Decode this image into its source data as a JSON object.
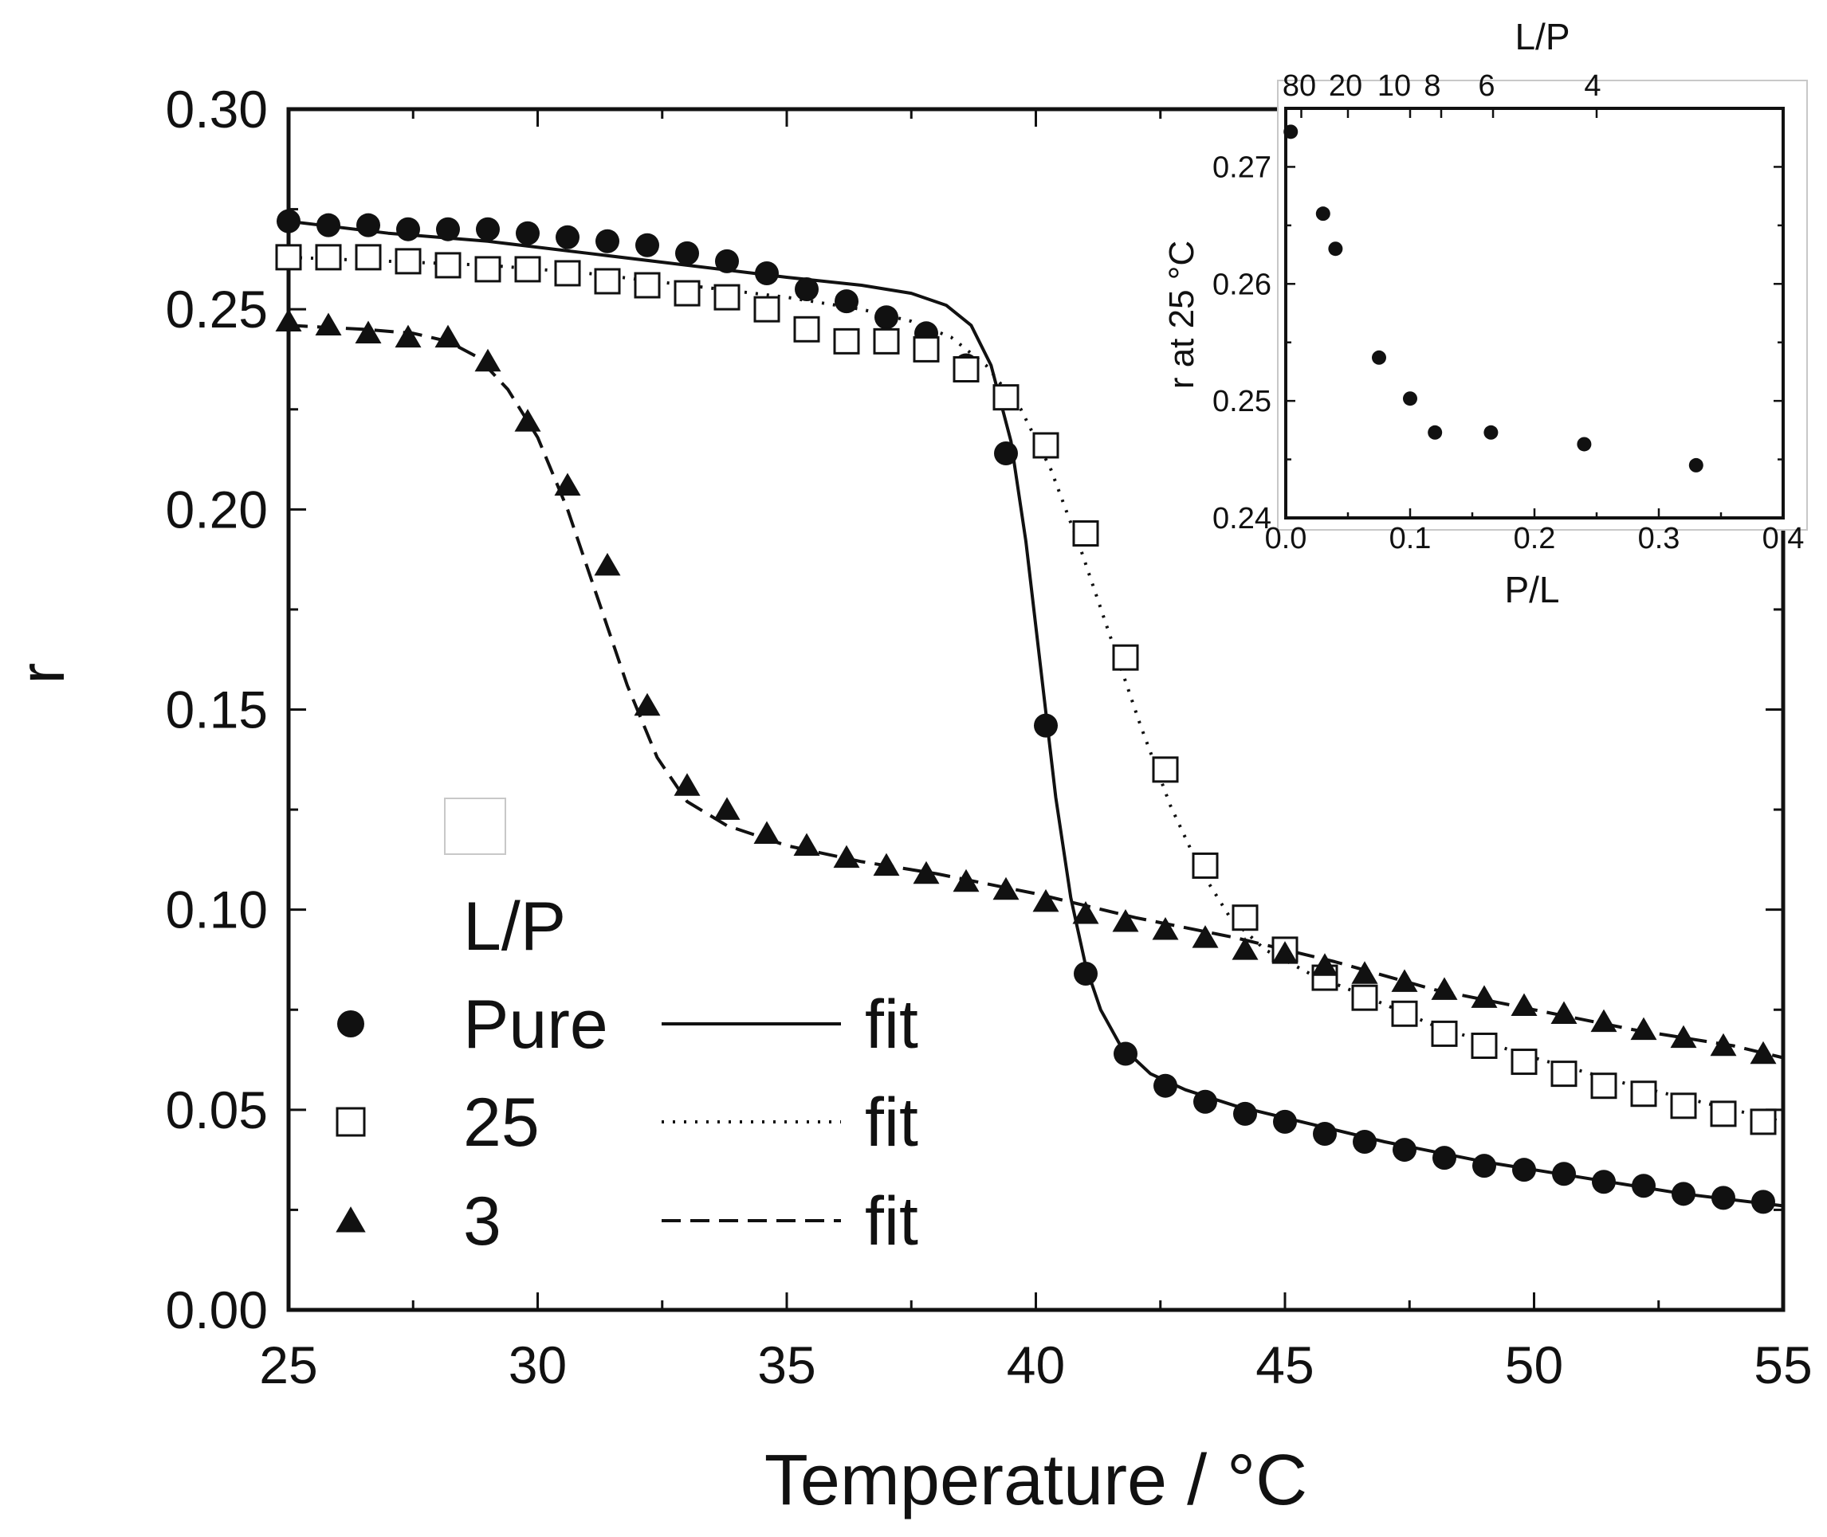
{
  "colors": {
    "ink": "#111111",
    "frame": "#000000",
    "background": "#ffffff",
    "faint": "#c8c8c8"
  },
  "chart_data": [
    {
      "type": "scatter",
      "id": "main",
      "title": "",
      "xlabel": "Temperature / °C",
      "ylabel": "r",
      "xlim": [
        25,
        55
      ],
      "ylim": [
        0.0,
        0.3
      ],
      "x_ticks": [
        25,
        30,
        35,
        40,
        45,
        50,
        55
      ],
      "x_tick_labels": [
        "25",
        "30",
        "35",
        "40",
        "45",
        "50",
        "55"
      ],
      "y_ticks": [
        0.0,
        0.05,
        0.1,
        0.15,
        0.2,
        0.25,
        0.3
      ],
      "y_tick_labels": [
        "0.00",
        "0.05",
        "0.10",
        "0.15",
        "0.20",
        "0.25",
        "0.30"
      ],
      "legend": {
        "title": "L/P",
        "position": "bottom-left",
        "entries": [
          {
            "marker": "filled-circle",
            "label": "Pure",
            "line": "solid",
            "line_label": "fit"
          },
          {
            "marker": "open-square",
            "label": "25",
            "line": "dotted",
            "line_label": "fit"
          },
          {
            "marker": "filled-triangle",
            "label": "3",
            "line": "dashed",
            "line_label": "fit"
          }
        ]
      },
      "series": [
        {
          "name": "Pure",
          "marker": "filled-circle",
          "x": [
            25.0,
            25.8,
            26.6,
            27.4,
            28.2,
            29.0,
            29.8,
            30.6,
            31.4,
            32.2,
            33.0,
            33.8,
            34.6,
            35.4,
            36.2,
            37.0,
            37.8,
            38.6,
            39.4,
            40.2,
            41.0,
            41.8,
            42.6,
            43.4,
            44.2,
            45.0,
            45.8,
            46.6,
            47.4,
            48.2,
            49.0,
            49.8,
            50.6,
            51.4,
            52.2,
            53.0,
            53.8,
            54.6
          ],
          "y": [
            0.272,
            0.271,
            0.271,
            0.27,
            0.27,
            0.27,
            0.269,
            0.268,
            0.267,
            0.266,
            0.264,
            0.262,
            0.259,
            0.255,
            0.252,
            0.248,
            0.244,
            0.236,
            0.214,
            0.146,
            0.084,
            0.064,
            0.056,
            0.052,
            0.049,
            0.047,
            0.044,
            0.042,
            0.04,
            0.038,
            0.036,
            0.035,
            0.034,
            0.032,
            0.031,
            0.029,
            0.028,
            0.027
          ]
        },
        {
          "name": "25",
          "marker": "open-square",
          "x": [
            25.0,
            25.8,
            26.6,
            27.4,
            28.2,
            29.0,
            29.8,
            30.6,
            31.4,
            32.2,
            33.0,
            33.8,
            34.6,
            35.4,
            36.2,
            37.0,
            37.8,
            38.6,
            39.4,
            40.2,
            41.0,
            41.8,
            42.6,
            43.4,
            44.2,
            45.0,
            45.8,
            46.6,
            47.4,
            48.2,
            49.0,
            49.8,
            50.6,
            51.4,
            52.2,
            53.0,
            53.8,
            54.6
          ],
          "y": [
            0.263,
            0.263,
            0.263,
            0.262,
            0.261,
            0.26,
            0.26,
            0.259,
            0.257,
            0.256,
            0.254,
            0.253,
            0.25,
            0.245,
            0.242,
            0.242,
            0.24,
            0.235,
            0.228,
            0.216,
            0.194,
            0.163,
            0.135,
            0.111,
            0.098,
            0.09,
            0.083,
            0.078,
            0.074,
            0.069,
            0.066,
            0.062,
            0.059,
            0.056,
            0.054,
            0.051,
            0.049,
            0.047
          ]
        },
        {
          "name": "3",
          "marker": "filled-triangle",
          "x": [
            25.0,
            25.8,
            26.6,
            27.4,
            28.2,
            29.0,
            29.8,
            30.6,
            31.4,
            32.2,
            33.0,
            33.8,
            34.6,
            35.4,
            36.2,
            37.0,
            37.8,
            38.6,
            39.4,
            40.2,
            41.0,
            41.8,
            42.6,
            43.4,
            44.2,
            45.0,
            45.8,
            46.6,
            47.4,
            48.2,
            49.0,
            49.8,
            50.6,
            51.4,
            52.2,
            53.0,
            53.8,
            54.6
          ],
          "y": [
            0.247,
            0.246,
            0.244,
            0.243,
            0.243,
            0.237,
            0.222,
            0.206,
            0.186,
            0.151,
            0.131,
            0.125,
            0.119,
            0.116,
            0.113,
            0.111,
            0.109,
            0.107,
            0.105,
            0.102,
            0.099,
            0.097,
            0.095,
            0.093,
            0.09,
            0.089,
            0.086,
            0.084,
            0.082,
            0.08,
            0.078,
            0.076,
            0.074,
            0.072,
            0.07,
            0.068,
            0.066,
            0.064
          ]
        }
      ],
      "fits": [
        {
          "name": "Pure fit",
          "style": "solid",
          "x": [
            25,
            27,
            29,
            31,
            33,
            35,
            36.5,
            37.5,
            38.2,
            38.7,
            39.1,
            39.5,
            39.8,
            40.1,
            40.4,
            40.7,
            41.0,
            41.3,
            41.7,
            42.3,
            43,
            44,
            45,
            47,
            49,
            51,
            53,
            55
          ],
          "y": [
            0.272,
            0.269,
            0.267,
            0.264,
            0.261,
            0.258,
            0.256,
            0.254,
            0.251,
            0.246,
            0.236,
            0.217,
            0.192,
            0.16,
            0.128,
            0.103,
            0.086,
            0.075,
            0.066,
            0.059,
            0.055,
            0.051,
            0.048,
            0.042,
            0.037,
            0.033,
            0.029,
            0.026
          ]
        },
        {
          "name": "25 fit",
          "style": "dotted",
          "x": [
            25,
            27,
            29,
            31,
            33,
            35,
            36.5,
            37.5,
            38.3,
            39,
            39.7,
            40.3,
            40.9,
            41.5,
            42.1,
            42.7,
            43.3,
            43.9,
            44.6,
            45.5,
            46.5,
            48,
            50,
            52,
            54,
            55
          ],
          "y": [
            0.263,
            0.262,
            0.261,
            0.259,
            0.256,
            0.253,
            0.25,
            0.247,
            0.243,
            0.236,
            0.225,
            0.21,
            0.19,
            0.168,
            0.146,
            0.126,
            0.11,
            0.098,
            0.09,
            0.084,
            0.079,
            0.071,
            0.063,
            0.056,
            0.05,
            0.047
          ]
        },
        {
          "name": "3 fit",
          "style": "dashed",
          "x": [
            25,
            26.5,
            27.5,
            28.2,
            28.8,
            29.4,
            30,
            30.6,
            31.2,
            31.8,
            32.4,
            33,
            33.8,
            35,
            36.5,
            38,
            40,
            42,
            44,
            46,
            48,
            50,
            52,
            54,
            55
          ],
          "y": [
            0.246,
            0.245,
            0.244,
            0.242,
            0.238,
            0.23,
            0.218,
            0.2,
            0.178,
            0.156,
            0.138,
            0.127,
            0.121,
            0.116,
            0.112,
            0.109,
            0.104,
            0.098,
            0.093,
            0.087,
            0.08,
            0.075,
            0.07,
            0.066,
            0.063
          ]
        }
      ]
    },
    {
      "type": "scatter",
      "id": "inset",
      "title": "",
      "xlabel": "P/L",
      "ylabel": "r at 25 °C",
      "top_xlabel": "L/P",
      "xlim": [
        0.0,
        0.4
      ],
      "ylim": [
        0.24,
        0.275
      ],
      "x_ticks": [
        0.0,
        0.1,
        0.2,
        0.3,
        0.4
      ],
      "x_tick_labels": [
        "0.0",
        "0.1",
        "0.2",
        "0.3",
        "0.4"
      ],
      "y_ticks": [
        0.24,
        0.25,
        0.26,
        0.27
      ],
      "y_tick_labels": [
        "0.24",
        "0.25",
        "0.26",
        "0.27"
      ],
      "top_ticks": [
        0.0125,
        0.05,
        0.1,
        0.125,
        0.1667,
        0.25
      ],
      "top_tick_labels": [
        "80",
        "20",
        "10",
        "8",
        "6",
        "4"
      ],
      "series": [
        {
          "name": "r at 25 °C",
          "marker": "filled-circle",
          "x": [
            0.004,
            0.03,
            0.04,
            0.075,
            0.1,
            0.12,
            0.165,
            0.24,
            0.33
          ],
          "y": [
            0.273,
            0.266,
            0.263,
            0.2537,
            0.2502,
            0.2473,
            0.2473,
            0.2463,
            0.2445
          ]
        }
      ]
    }
  ]
}
